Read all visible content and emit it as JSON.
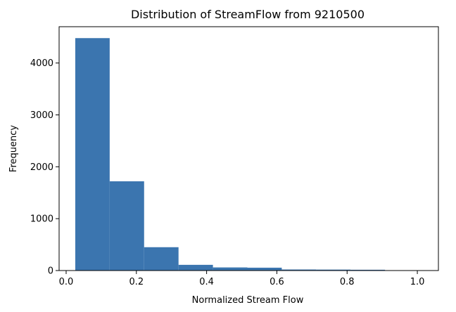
{
  "chart_data": {
    "type": "bar",
    "title": "Distribution of StreamFlow from 9210500",
    "xlabel": "Normalized Stream Flow",
    "ylabel": "Frequency",
    "xlim": [
      -0.02,
      1.06
    ],
    "ylim": [
      0,
      4700
    ],
    "xticks": [
      0.0,
      0.2,
      0.4,
      0.6,
      0.8,
      1.0
    ],
    "xtick_labels": [
      "0.0",
      "0.2",
      "0.4",
      "0.6",
      "0.8",
      "1.0"
    ],
    "yticks": [
      0,
      1000,
      2000,
      3000,
      4000
    ],
    "ytick_labels": [
      "0",
      "1000",
      "2000",
      "3000",
      "4000"
    ],
    "bar_color": "#3b75af",
    "grid": false,
    "bins": [
      {
        "x0": 0.026,
        "x1": 0.124,
        "value": 4480
      },
      {
        "x0": 0.124,
        "x1": 0.222,
        "value": 1720
      },
      {
        "x0": 0.222,
        "x1": 0.32,
        "value": 450
      },
      {
        "x0": 0.32,
        "x1": 0.418,
        "value": 110
      },
      {
        "x0": 0.418,
        "x1": 0.516,
        "value": 60
      },
      {
        "x0": 0.516,
        "x1": 0.614,
        "value": 55
      },
      {
        "x0": 0.614,
        "x1": 0.712,
        "value": 20
      },
      {
        "x0": 0.712,
        "x1": 0.81,
        "value": 18
      },
      {
        "x0": 0.81,
        "x1": 0.908,
        "value": 15
      },
      {
        "x0": 0.908,
        "x1": 1.006,
        "value": 0
      }
    ]
  }
}
